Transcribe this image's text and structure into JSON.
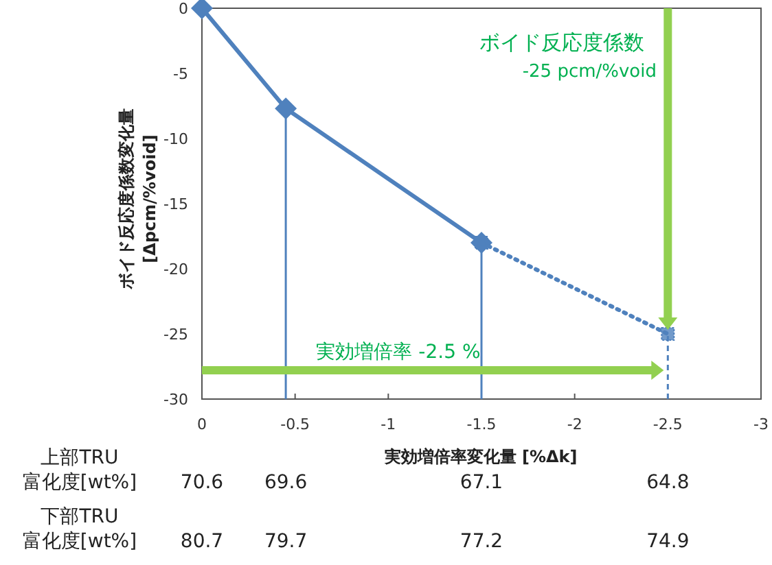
{
  "chart_data": {
    "type": "line",
    "xlabel": "実効増倍率変化量 [%Δk]",
    "ylabel": "ボイド反応度係数変化量\n[Δpcm/%void]",
    "x": [
      0,
      -0.45,
      -1.5,
      -2.5
    ],
    "series": [
      {
        "color": "#4f81bd",
        "values": [
          0,
          -7.7,
          -18,
          null
        ],
        "marker": "diamond",
        "line_style": "solid"
      },
      {
        "color": "#4f81bd",
        "values": [
          null,
          null,
          -18,
          -25
        ],
        "marker": "square",
        "line_style": "dotted"
      }
    ],
    "xlim": [
      0,
      -3
    ],
    "xticks": [
      0,
      -0.5,
      -1,
      -1.5,
      -2,
      -2.5,
      -3
    ],
    "ylim": [
      -30,
      0
    ],
    "yticks": [
      -30,
      -25,
      -20,
      -15,
      -10,
      -5,
      0
    ],
    "grid": false,
    "ref_lines": [
      {
        "axis": "x",
        "value": -0.45,
        "color": "#4f81bd",
        "line_style": "solid"
      },
      {
        "axis": "x",
        "value": -1.5,
        "color": "#4f81bd",
        "line_style": "solid"
      },
      {
        "axis": "x",
        "value": -2.5,
        "color": "#4f81bd",
        "line_style": "dashed"
      }
    ],
    "annotations": [
      "ボイド反応度係数",
      "-25 pcm/%void",
      "実効増倍率  -2.5 %",
      "上部TRU\n富化度[wt%]",
      "70.6",
      "69.6",
      "67.1",
      "64.8",
      "下部TRU\n富化度[wt%]",
      "80.7",
      "79.7",
      "77.2",
      "74.9"
    ]
  }
}
